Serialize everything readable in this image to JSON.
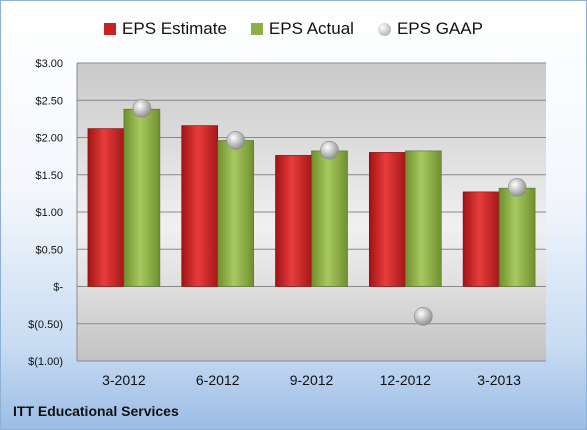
{
  "chart_data": {
    "type": "bar",
    "categories": [
      "3-2012",
      "6-2012",
      "9-2012",
      "12-2012",
      "3-2013"
    ],
    "series": [
      {
        "name": "EPS Estimate",
        "kind": "bar",
        "color": "#cc2020",
        "values": [
          2.12,
          2.16,
          1.76,
          1.8,
          1.27
        ]
      },
      {
        "name": "EPS Actual",
        "kind": "bar",
        "color": "#8cb043",
        "values": [
          2.38,
          1.96,
          1.82,
          1.82,
          1.32
        ]
      },
      {
        "name": "EPS GAAP",
        "kind": "scatter",
        "color": "#b8b8b8",
        "values": [
          2.39,
          1.96,
          1.83,
          -0.4,
          1.33
        ]
      }
    ],
    "ylim": [
      -1.0,
      3.0
    ],
    "yticks": [
      -1.0,
      -0.5,
      0.0,
      0.5,
      1.0,
      1.5,
      2.0,
      2.5,
      3.0
    ],
    "ytick_labels": [
      "$(1.00)",
      "$(0.50)",
      "$-",
      "$0.50",
      "$1.00",
      "$1.50",
      "$2.00",
      "$2.50",
      "$3.00"
    ],
    "grid": true,
    "legend_position": "top"
  },
  "footer": {
    "company": "ITT Educational Services"
  }
}
